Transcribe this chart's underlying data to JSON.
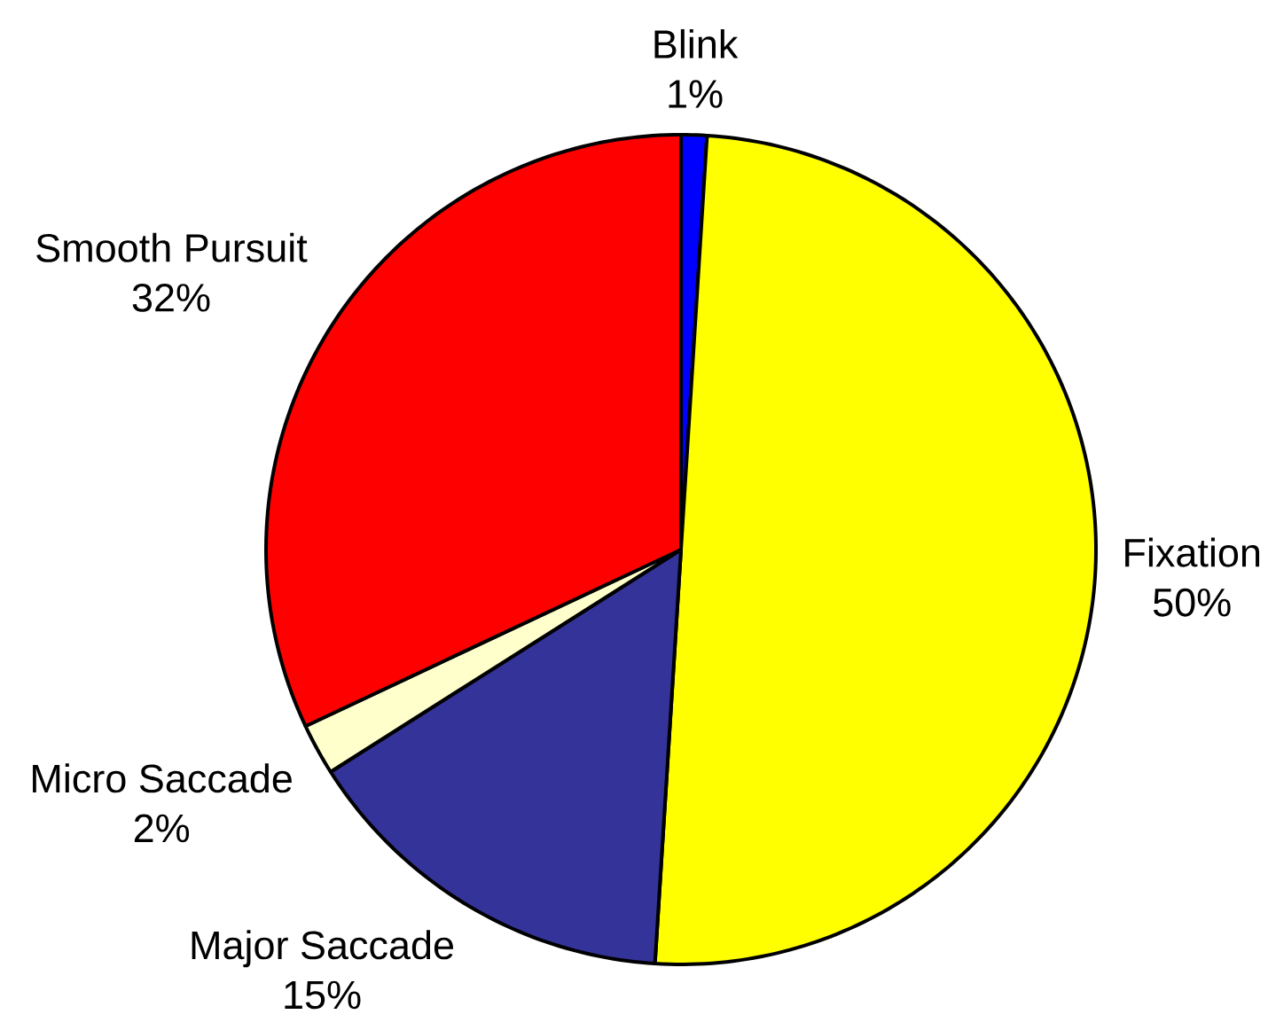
{
  "chart_data": {
    "type": "pie",
    "categories": [
      "Blink",
      "Fixation",
      "Major Saccade",
      "Micro Saccade",
      "Smooth Pursuit"
    ],
    "values": [
      1,
      50,
      15,
      2,
      32
    ],
    "colors": [
      "#0000ff",
      "#ffff00",
      "#333399",
      "#ffffcc",
      "#ff0000"
    ],
    "value_labels": [
      "1%",
      "50%",
      "15%",
      "2%",
      "32%"
    ]
  }
}
